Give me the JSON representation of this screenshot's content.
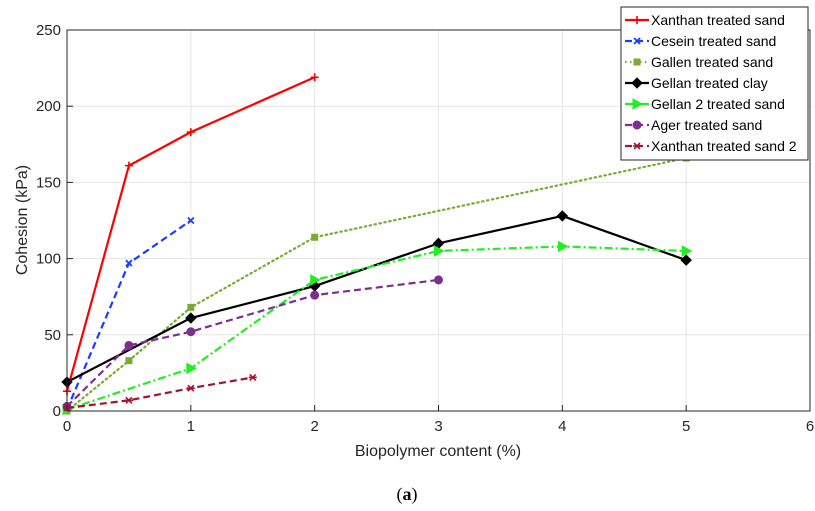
{
  "chart_data": {
    "type": "line",
    "xlabel": "Biopolymer content (%)",
    "ylabel": "Cohesion (kPa)",
    "xlim": [
      0,
      6
    ],
    "ylim": [
      0,
      250
    ],
    "xticks": [
      "0",
      "1",
      "2",
      "3",
      "4",
      "5",
      "6"
    ],
    "yticks": [
      "0",
      "50",
      "100",
      "150",
      "200",
      "250"
    ],
    "grid": true,
    "legend_position": "top-right",
    "caption_prefix": "(",
    "caption_letter": "a",
    "caption_suffix": ")",
    "series": [
      {
        "name": "Xanthan treated sand",
        "color": "#ff0000",
        "dash": "solid",
        "marker": "plus",
        "x": [
          0,
          0.5,
          1,
          2
        ],
        "y": [
          13,
          161,
          183,
          219
        ]
      },
      {
        "name": "Cesein treated sand",
        "color": "#1a3cff",
        "dash": "dashed",
        "marker": "x",
        "x": [
          0,
          0.5,
          1
        ],
        "y": [
          1,
          97,
          125
        ]
      },
      {
        "name": "Gallen treated sand",
        "color": "#77ac30",
        "dash": "dotted",
        "marker": "square",
        "x": [
          0,
          0.5,
          1,
          2,
          5
        ],
        "y": [
          0,
          33,
          68,
          114,
          166
        ]
      },
      {
        "name": "Gellan treated clay",
        "color": "#000000",
        "dash": "solid",
        "marker": "diamond",
        "x": [
          0,
          1,
          2,
          3,
          4,
          5
        ],
        "y": [
          19,
          61,
          82,
          110,
          128,
          99
        ]
      },
      {
        "name": "Gellan 2 treated sand",
        "color": "#22ee22",
        "dash": "dashdot",
        "marker": "triangle-right",
        "x": [
          0,
          1,
          2,
          3,
          4,
          5
        ],
        "y": [
          1,
          28,
          86,
          105,
          108,
          105
        ]
      },
      {
        "name": "Ager treated sand",
        "color": "#7e2f8e",
        "dash": "dashed",
        "marker": "circle",
        "x": [
          0,
          0.5,
          1,
          2,
          3
        ],
        "y": [
          3,
          43,
          52,
          76,
          86
        ]
      },
      {
        "name": "Xanthan treated sand 2",
        "color": "#a2142f",
        "dash": "dashed",
        "marker": "asterisk",
        "x": [
          0,
          0.5,
          1,
          1.5
        ],
        "y": [
          2,
          7,
          15,
          22
        ]
      }
    ]
  }
}
